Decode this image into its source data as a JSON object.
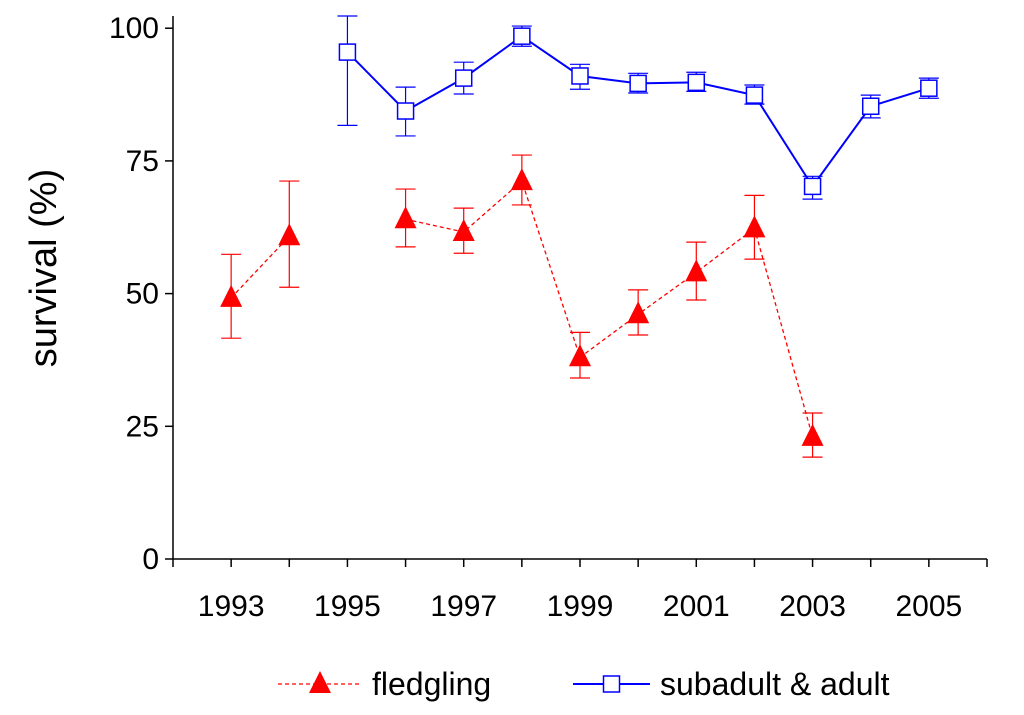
{
  "chart_data": {
    "type": "line",
    "title": "",
    "xlabel": "",
    "ylabel": "survival (%)",
    "xlim": [
      1992,
      2006
    ],
    "ylim": [
      0,
      102.3
    ],
    "xticks": [
      1993,
      1995,
      1997,
      1999,
      2001,
      2003,
      2005
    ],
    "xtick_labels": [
      "1993",
      "1995",
      "1997",
      "1999",
      "2001",
      "2003",
      "2005"
    ],
    "yticks": [
      0,
      25,
      50,
      75,
      100
    ],
    "ytick_labels": [
      "0",
      "25",
      "50",
      "75",
      "100"
    ],
    "grid": false,
    "legend_placement": "bottom",
    "series": [
      {
        "name": "fledgling",
        "color": "#ff0000",
        "line_style": "dashed",
        "marker": "filled-triangle",
        "segments": [
          [
            {
              "x": 1993,
              "y": 49.2,
              "lo": 41.6,
              "hi": 57.4
            },
            {
              "x": 1994,
              "y": 60.8,
              "lo": 51.2,
              "hi": 71.2
            }
          ],
          [
            {
              "x": 1996,
              "y": 64.0,
              "lo": 58.8,
              "hi": 69.7
            },
            {
              "x": 1997,
              "y": 61.6,
              "lo": 57.6,
              "hi": 66.1
            },
            {
              "x": 1998,
              "y": 71.2,
              "lo": 66.7,
              "hi": 76.1
            },
            {
              "x": 1999,
              "y": 38.0,
              "lo": 34.1,
              "hi": 42.7
            },
            {
              "x": 2000,
              "y": 46.1,
              "lo": 42.2,
              "hi": 50.7
            },
            {
              "x": 2001,
              "y": 54.0,
              "lo": 48.8,
              "hi": 59.7
            },
            {
              "x": 2002,
              "y": 62.3,
              "lo": 56.5,
              "hi": 68.5
            },
            {
              "x": 2003,
              "y": 23.0,
              "lo": 19.2,
              "hi": 27.5
            }
          ]
        ]
      },
      {
        "name": "subadult & adult",
        "color": "#0000ff",
        "line_style": "solid",
        "marker": "open-square",
        "segments": [
          [
            {
              "x": 1995,
              "y": 95.5,
              "lo": 81.7,
              "hi": 102.3
            },
            {
              "x": 1996,
              "y": 84.4,
              "lo": 79.7,
              "hi": 88.9
            },
            {
              "x": 1997,
              "y": 90.6,
              "lo": 87.6,
              "hi": 93.6
            },
            {
              "x": 1998,
              "y": 98.5,
              "lo": 96.6,
              "hi": 100.4
            },
            {
              "x": 1999,
              "y": 91.0,
              "lo": 88.5,
              "hi": 93.2
            },
            {
              "x": 2000,
              "y": 89.6,
              "lo": 87.8,
              "hi": 91.5
            },
            {
              "x": 2001,
              "y": 89.8,
              "lo": 88.1,
              "hi": 91.7
            },
            {
              "x": 2002,
              "y": 87.4,
              "lo": 85.7,
              "hi": 89.3
            },
            {
              "x": 2003,
              "y": 70.2,
              "lo": 67.8,
              "hi": 72.1
            },
            {
              "x": 2004,
              "y": 85.3,
              "lo": 83.1,
              "hi": 87.4
            },
            {
              "x": 2005,
              "y": 88.7,
              "lo": 86.8,
              "hi": 90.6
            }
          ]
        ]
      }
    ]
  }
}
